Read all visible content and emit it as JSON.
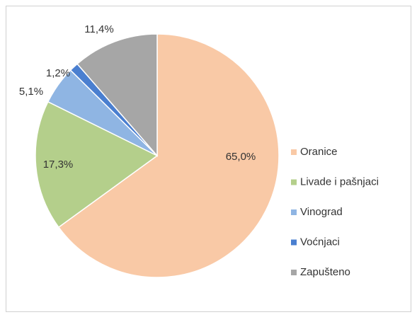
{
  "chart_data": {
    "type": "pie",
    "categories": [
      "Oranice",
      "Livade i pašnjaci",
      "Vinograd",
      "Voćnjaci",
      "Zapušteno"
    ],
    "values": [
      65.0,
      17.3,
      5.1,
      1.2,
      11.4
    ],
    "value_labels": [
      "65,0%",
      "17,3%",
      "5,1%",
      "1,2%",
      "11,4%"
    ],
    "colors": [
      "#f9c9a6",
      "#b4cf8b",
      "#8fb5e3",
      "#4a7fd0",
      "#a6a6a6"
    ],
    "legend": "right"
  }
}
